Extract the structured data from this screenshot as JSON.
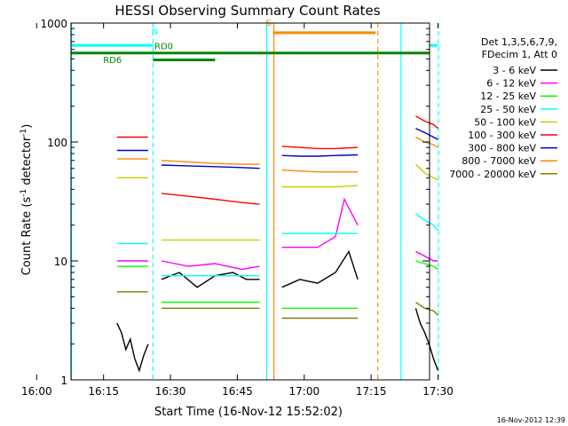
{
  "chart_data": {
    "type": "line",
    "title": "HESSI Observing Summary Count Rates",
    "xlabel": "Start Time (16-Nov-12 15:52:02)",
    "ylabel_main": "Count Rate (s",
    "ylabel_sup1": "-1",
    "ylabel_mid": " detector",
    "ylabel_sup2": "-1",
    "ylabel_end": ")",
    "yscale": "log",
    "ylim": [
      1,
      1000
    ],
    "xlim_minutes": [
      15.7,
      96.1
    ],
    "x_ticks": [
      {
        "label": "16:00",
        "m": 8
      },
      {
        "label": "16:15",
        "m": 23
      },
      {
        "label": "16:30",
        "m": 38
      },
      {
        "label": "16:45",
        "m": 53
      },
      {
        "label": "17:00",
        "m": 68
      },
      {
        "label": "17:15",
        "m": 83
      },
      {
        "label": "17:30",
        "m": 98
      }
    ],
    "y_ticks": [
      {
        "label": "1",
        "v": 1
      },
      {
        "label": "10",
        "v": 10
      },
      {
        "label": "100",
        "v": 100
      },
      {
        "label": "1000",
        "v": 1000
      }
    ],
    "legend_header": [
      "Det 1,3,5,6,7,9,",
      "FDecim 1, Att 0"
    ],
    "series": [
      {
        "name": "3 - 6 keV",
        "color": "#000000",
        "segments": [
          {
            "x": [
              26,
              27,
              28,
              29,
              30,
              31,
              32,
              33
            ],
            "y": [
              3,
              2.5,
              1.8,
              2.2,
              1.5,
              1.2,
              1.6,
              2
            ]
          },
          {
            "x": [
              36,
              40,
              44,
              48,
              52,
              55,
              58
            ],
            "y": [
              7,
              8,
              6,
              7.5,
              8,
              7,
              7
            ]
          },
          {
            "x": [
              63,
              67,
              71,
              75,
              78,
              80
            ],
            "y": [
              6,
              7,
              6.5,
              8,
              12,
              7
            ]
          },
          {
            "x": [
              93,
              94,
              95,
              96,
              97,
              98
            ],
            "y": [
              4,
              3,
              2.5,
              2,
              1.5,
              1.2
            ]
          }
        ]
      },
      {
        "name": "6 - 12 keV",
        "color": "#ff00ff",
        "segments": [
          {
            "x": [
              26,
              30,
              33
            ],
            "y": [
              10,
              10,
              10
            ]
          },
          {
            "x": [
              36,
              42,
              48,
              54,
              58
            ],
            "y": [
              10,
              9,
              9.5,
              8.5,
              9
            ]
          },
          {
            "x": [
              63,
              67,
              71,
              75,
              77,
              80
            ],
            "y": [
              13,
              13,
              13,
              16,
              33,
              20
            ]
          },
          {
            "x": [
              93,
              95,
              97,
              98
            ],
            "y": [
              12,
              11,
              10,
              10
            ]
          }
        ]
      },
      {
        "name": "12 - 25 keV",
        "color": "#00ff00",
        "segments": [
          {
            "x": [
              26,
              30,
              33
            ],
            "y": [
              9,
              9,
              9
            ]
          },
          {
            "x": [
              36,
              42,
              48,
              54,
              58
            ],
            "y": [
              4.5,
              4.5,
              4.5,
              4.5,
              4.5
            ]
          },
          {
            "x": [
              63,
              67,
              71,
              75,
              80
            ],
            "y": [
              4,
              4,
              4,
              4,
              4
            ]
          },
          {
            "x": [
              93,
              95,
              97,
              98
            ],
            "y": [
              10,
              9.5,
              9,
              8.5
            ]
          }
        ]
      },
      {
        "name": "25 - 50 keV",
        "color": "#00ffff",
        "segments": [
          {
            "x": [
              26,
              30,
              33
            ],
            "y": [
              14,
              14,
              14
            ]
          },
          {
            "x": [
              36,
              42,
              48,
              54,
              58
            ],
            "y": [
              7.5,
              7.5,
              7.5,
              7.5,
              7.5
            ]
          },
          {
            "x": [
              63,
              67,
              71,
              75,
              80
            ],
            "y": [
              17,
              17,
              17,
              17,
              17
            ]
          },
          {
            "x": [
              93,
              95,
              97,
              98
            ],
            "y": [
              25,
              22,
              20,
              18
            ]
          }
        ]
      },
      {
        "name": "50 - 100 keV",
        "color": "#cccc00",
        "segments": [
          {
            "x": [
              26,
              30,
              33
            ],
            "y": [
              50,
              50,
              50
            ]
          },
          {
            "x": [
              36,
              42,
              48,
              54,
              58
            ],
            "y": [
              15,
              15,
              15,
              15,
              15
            ]
          },
          {
            "x": [
              63,
              67,
              71,
              75,
              80
            ],
            "y": [
              42,
              42,
              42,
              42,
              43
            ]
          },
          {
            "x": [
              93,
              95,
              97,
              98
            ],
            "y": [
              65,
              55,
              50,
              48
            ]
          }
        ]
      },
      {
        "name": "100 - 300 keV",
        "color": "#ff0000",
        "segments": [
          {
            "x": [
              26,
              30,
              33
            ],
            "y": [
              110,
              110,
              110
            ]
          },
          {
            "x": [
              36,
              42,
              48,
              54,
              58
            ],
            "y": [
              37,
              35,
              33,
              31,
              30
            ]
          },
          {
            "x": [
              63,
              67,
              71,
              75,
              80
            ],
            "y": [
              92,
              90,
              88,
              88,
              90
            ]
          },
          {
            "x": [
              93,
              95,
              97,
              98
            ],
            "y": [
              165,
              150,
              140,
              130
            ]
          }
        ]
      },
      {
        "name": "300 - 800 keV",
        "color": "#0000cc",
        "segments": [
          {
            "x": [
              26,
              30,
              33
            ],
            "y": [
              85,
              85,
              85
            ]
          },
          {
            "x": [
              36,
              42,
              48,
              54,
              58
            ],
            "y": [
              64,
              63,
              62,
              61,
              60
            ]
          },
          {
            "x": [
              63,
              67,
              71,
              75,
              80
            ],
            "y": [
              77,
              76,
              76,
              77,
              78
            ]
          },
          {
            "x": [
              93,
              95,
              97,
              98
            ],
            "y": [
              130,
              120,
              110,
              105
            ]
          }
        ]
      },
      {
        "name": "800 - 7000 keV",
        "color": "#ff8800",
        "segments": [
          {
            "x": [
              26,
              30,
              33
            ],
            "y": [
              72,
              72,
              72
            ]
          },
          {
            "x": [
              36,
              42,
              48,
              54,
              58
            ],
            "y": [
              70,
              68,
              66,
              65,
              65
            ]
          },
          {
            "x": [
              63,
              67,
              71,
              75,
              80
            ],
            "y": [
              58,
              57,
              56,
              56,
              56
            ]
          },
          {
            "x": [
              93,
              95,
              97,
              98
            ],
            "y": [
              110,
              100,
              95,
              90
            ]
          }
        ]
      },
      {
        "name": "7000 - 20000 keV",
        "color": "#808000",
        "segments": [
          {
            "x": [
              26,
              30,
              33
            ],
            "y": [
              5.5,
              5.5,
              5.5
            ]
          },
          {
            "x": [
              36,
              42,
              48,
              54,
              58
            ],
            "y": [
              4,
              4,
              4,
              4,
              4
            ]
          },
          {
            "x": [
              63,
              67,
              71,
              75,
              80
            ],
            "y": [
              3.3,
              3.3,
              3.3,
              3.3,
              3.3
            ]
          },
          {
            "x": [
              93,
              95,
              97,
              98
            ],
            "y": [
              4.5,
              4,
              3.8,
              3.5
            ]
          }
        ]
      }
    ],
    "flag_bars": [
      {
        "label": "",
        "color": "#00ffff",
        "y": 650,
        "segments": [
          [
            15.8,
            34.1
          ],
          [
            98.0,
            96.0
          ]
        ]
      },
      {
        "label": "N",
        "color": "#00ffff",
        "label_m": 34.5,
        "label_y": 800
      },
      {
        "label": "RD0",
        "color": "#008800",
        "y": 490,
        "segments": [
          [
            34.1,
            48
          ]
        ],
        "label_m": 36.5,
        "label_y": 600
      },
      {
        "label": "RD6",
        "color": "#008800",
        "y": 560,
        "segments": [
          [
            15.8,
            96.0
          ]
        ],
        "label_m": 25,
        "label_y": 460
      },
      {
        "label": "S",
        "color": "#ff8800",
        "y": 830,
        "segments": [
          [
            61.0,
            84.0
          ]
        ],
        "label_m": 60,
        "label_y": 950
      }
    ],
    "vertical_lines": [
      {
        "m": 15.8,
        "color": "#00ffff",
        "dash": false
      },
      {
        "m": 34.1,
        "color": "#00ffff",
        "dash": true
      },
      {
        "m": 59.6,
        "color": "#00ffff",
        "dash": false
      },
      {
        "m": 61.2,
        "color": "#ff8800",
        "dash": false
      },
      {
        "m": 84.5,
        "color": "#ff8800",
        "dash": true
      },
      {
        "m": 89.7,
        "color": "#00ffff",
        "dash": false
      },
      {
        "m": 98.1,
        "color": "#00ffff",
        "dash": true
      }
    ],
    "footer_stamp": "16-Nov-2012 12:39"
  }
}
